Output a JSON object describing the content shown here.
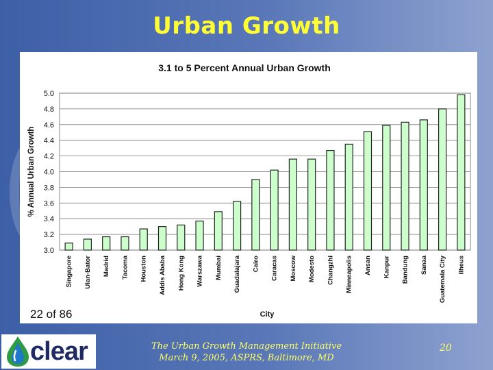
{
  "slide": {
    "title": "Urban Growth",
    "page_count": "22 of 86",
    "footer_line1": "The Urban Growth Management Initiative",
    "footer_line2": "March 9, 2005, ASPRS, Baltimore, MD",
    "slide_number": "20",
    "logo_text": "clear"
  },
  "colors": {
    "title": "#ffff33",
    "bar_fill": "#ccffcc",
    "bar_stroke": "#222222",
    "plot_bg": "#ffffff",
    "footer_text": "#ffff66"
  },
  "chart_data": {
    "type": "bar",
    "title": "3.1 to 5 Percent Annual Urban Growth",
    "xlabel": "City",
    "ylabel": "% Annual Urban Growth",
    "ylim": [
      3.0,
      5.0
    ],
    "yticks": [
      "3.0",
      "3.2",
      "3.4",
      "3.6",
      "3.8",
      "4.0",
      "4.2",
      "4.4",
      "4.6",
      "4.8",
      "5.0"
    ],
    "grid": true,
    "categories": [
      "Singapore",
      "Ulan-Bator",
      "Madrid",
      "Tacoma",
      "Houston",
      "Addis Ababa",
      "Hong Kong",
      "Warszawa",
      "Mumbai",
      "Guadalajara",
      "Cairo",
      "Caracas",
      "Moscow",
      "Modesto",
      "Changzhi",
      "Minneapolis",
      "Ansan",
      "Kanpur",
      "Bandung",
      "Sanaa",
      "Guatemala City",
      "Ilheus"
    ],
    "values": [
      3.09,
      3.14,
      3.17,
      3.17,
      3.27,
      3.3,
      3.32,
      3.37,
      3.49,
      3.62,
      3.9,
      4.02,
      4.16,
      4.16,
      4.27,
      4.35,
      4.51,
      4.59,
      4.63,
      4.66,
      4.8,
      4.98
    ]
  }
}
